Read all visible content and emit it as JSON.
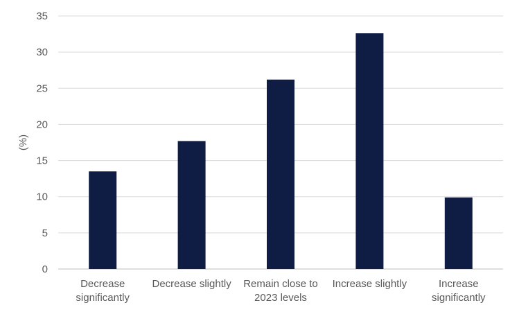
{
  "chart_data": {
    "type": "bar",
    "categories": [
      [
        "Decrease",
        "significantly"
      ],
      [
        "Decrease slightly"
      ],
      [
        "Remain close to",
        "2023 levels"
      ],
      [
        "Increase slightly"
      ],
      [
        "Increase",
        "significantly"
      ]
    ],
    "values": [
      13.5,
      17.7,
      26.2,
      32.6,
      9.9
    ],
    "ylabel": "(%)",
    "ylim": [
      0,
      35
    ],
    "yticks": [
      0,
      5,
      10,
      15,
      20,
      25,
      30,
      35
    ],
    "grid": true,
    "legend": "none",
    "colors": {
      "bar": "#0f1c44"
    }
  }
}
